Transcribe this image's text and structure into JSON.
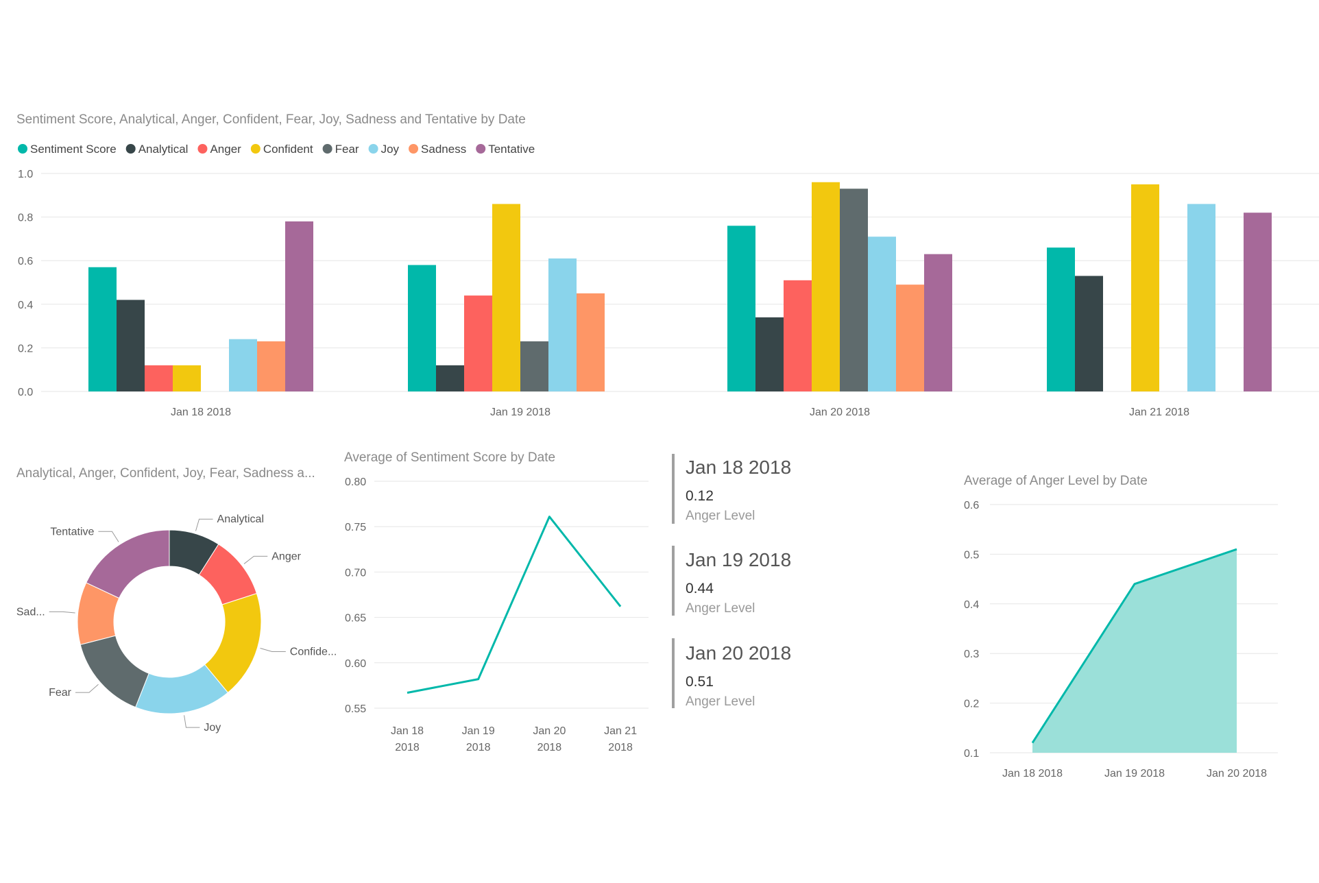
{
  "colors": {
    "Sentiment Score": "#01b8aa",
    "Analytical": "#374649",
    "Anger": "#fd625e",
    "Confident": "#f2c80f",
    "Fear": "#5f6b6d",
    "Joy": "#8ad4eb",
    "Sadness": "#fe9666",
    "Tentative": "#a66999"
  },
  "chart_data": [
    {
      "id": "clustered-bar",
      "type": "bar",
      "title": "Sentiment Score, Analytical, Anger, Confident, Fear, Joy, Sadness and Tentative by Date",
      "categories": [
        "Jan 18 2018",
        "Jan 19 2018",
        "Jan 20 2018",
        "Jan 21 2018"
      ],
      "ylim": [
        0,
        1.0
      ],
      "yticks": [
        "0.0",
        "0.2",
        "0.4",
        "0.6",
        "0.8",
        "1.0"
      ],
      "legend_position": "top-left",
      "series": [
        {
          "name": "Sentiment Score",
          "values": [
            0.57,
            0.58,
            0.76,
            0.66
          ]
        },
        {
          "name": "Analytical",
          "values": [
            0.42,
            0.12,
            0.34,
            0.53
          ]
        },
        {
          "name": "Anger",
          "values": [
            0.12,
            0.44,
            0.51,
            null
          ]
        },
        {
          "name": "Confident",
          "values": [
            0.12,
            0.86,
            0.96,
            0.95
          ]
        },
        {
          "name": "Fear",
          "values": [
            null,
            0.23,
            0.93,
            null
          ]
        },
        {
          "name": "Joy",
          "values": [
            0.24,
            0.61,
            0.71,
            0.86
          ]
        },
        {
          "name": "Sadness",
          "values": [
            0.23,
            0.45,
            0.49,
            null
          ]
        },
        {
          "name": "Tentative",
          "values": [
            0.78,
            null,
            0.63,
            0.82
          ]
        }
      ]
    },
    {
      "id": "donut",
      "type": "pie",
      "title": "Analytical, Anger, Confident, Joy, Fear, Sadness a...",
      "slices": [
        {
          "name": "Analytical",
          "label": "Analytical",
          "value": 9
        },
        {
          "name": "Anger",
          "label": "Anger",
          "value": 11
        },
        {
          "name": "Confident",
          "label": "Confide...",
          "value": 19
        },
        {
          "name": "Joy",
          "label": "Joy",
          "value": 17
        },
        {
          "name": "Fear",
          "label": "Fear",
          "value": 15
        },
        {
          "name": "Sadness",
          "label": "Sad...",
          "value": 11
        },
        {
          "name": "Tentative",
          "label": "Tentative",
          "value": 18
        }
      ]
    },
    {
      "id": "sentiment-line",
      "type": "line",
      "title": "Average of Sentiment Score by Date",
      "categories": [
        [
          "Jan 18",
          "2018"
        ],
        [
          "Jan 19",
          "2018"
        ],
        [
          "Jan 20",
          "2018"
        ],
        [
          "Jan 21",
          "2018"
        ]
      ],
      "values": [
        0.567,
        0.582,
        0.761,
        0.662
      ],
      "ylim": [
        0.55,
        0.8
      ],
      "yticks": [
        "0.55",
        "0.60",
        "0.65",
        "0.70",
        "0.75",
        "0.80"
      ],
      "color": "#01b8aa"
    },
    {
      "id": "anger-area",
      "type": "area",
      "title": "Average of Anger Level by Date",
      "categories": [
        "Jan 18 2018",
        "Jan 19 2018",
        "Jan 20 2018"
      ],
      "values": [
        0.12,
        0.44,
        0.51
      ],
      "ylim": [
        0.1,
        0.6
      ],
      "yticks": [
        "0.1",
        "0.2",
        "0.3",
        "0.4",
        "0.5",
        "0.6"
      ],
      "color": "#01b8aa",
      "fill": "#9be0d9"
    }
  ],
  "cards": [
    {
      "date": "Jan 18 2018",
      "value": "0.12",
      "label": "Anger Level"
    },
    {
      "date": "Jan 19 2018",
      "value": "0.44",
      "label": "Anger Level"
    },
    {
      "date": "Jan 20 2018",
      "value": "0.51",
      "label": "Anger Level"
    }
  ]
}
